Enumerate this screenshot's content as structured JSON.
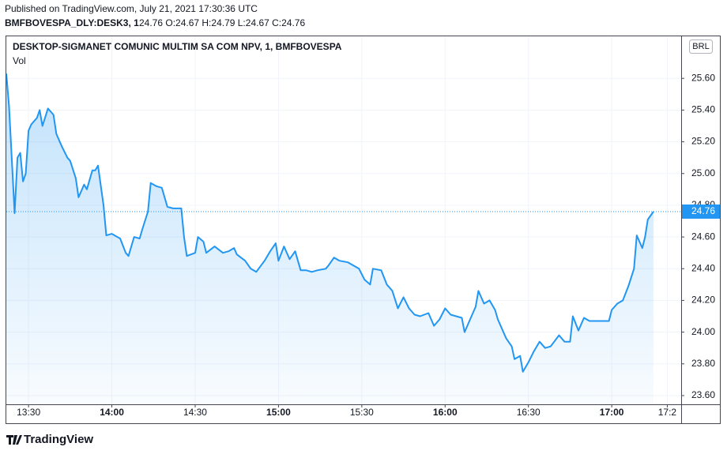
{
  "header": {
    "published": "Published on TradingView.com, July 21, 2021 17:30:36 UTC",
    "symbol": "BMFBOVESPA_DLY:DESK3, 1",
    "ohlc": "24.76 O:24.67 H:24.79 L:24.67 C:24.76"
  },
  "chart_data": {
    "type": "area",
    "title": "DESKTOP-SIGMANET COMUNIC MULTIM SA COM NPV, 1, BMFBOVESPA",
    "subtitle": "Vol",
    "currency": "BRL",
    "color": "#2196f3",
    "grid": true,
    "last_price": 24.76,
    "x": [
      802,
      803,
      805,
      806,
      807,
      808,
      809,
      810,
      811,
      813,
      814,
      815,
      817,
      819,
      820,
      822,
      824,
      825,
      827,
      828,
      830,
      831,
      833,
      834,
      835,
      837,
      838,
      840,
      842,
      843,
      845,
      846,
      848,
      850,
      851,
      853,
      854,
      856,
      858,
      860,
      862,
      865,
      866,
      867,
      870,
      871,
      873,
      874,
      877,
      880,
      882,
      884,
      885,
      888,
      890,
      892,
      895,
      897,
      899,
      900,
      902,
      904,
      906,
      908,
      910,
      912,
      914,
      917,
      918,
      920,
      922,
      925,
      929,
      931,
      933,
      934,
      937,
      939,
      941,
      943,
      945,
      947,
      949,
      951,
      954,
      956,
      958,
      960,
      962,
      964,
      966,
      967,
      969,
      971,
      972,
      974,
      976,
      978,
      979,
      982,
      984,
      985,
      987,
      988,
      990,
      992,
      994,
      996,
      998,
      1001,
      1003,
      1005,
      1006,
      1008,
      1010,
      1012,
      1014,
      1016,
      1019,
      1020,
      1022,
      1024,
      1026,
      1028,
      1029,
      1031,
      1032,
      1033,
      1035
    ],
    "values": [
      25.63,
      25.42,
      24.75,
      25.1,
      25.13,
      24.95,
      25.0,
      25.27,
      25.31,
      25.35,
      25.4,
      25.3,
      25.41,
      25.37,
      25.25,
      25.17,
      25.1,
      25.08,
      24.97,
      24.85,
      24.93,
      24.9,
      25.02,
      25.02,
      25.05,
      24.8,
      24.61,
      24.62,
      24.6,
      24.59,
      24.5,
      24.48,
      24.6,
      24.59,
      24.65,
      24.76,
      24.94,
      24.92,
      24.91,
      24.79,
      24.78,
      24.78,
      24.6,
      24.48,
      24.5,
      24.6,
      24.57,
      24.5,
      24.54,
      24.5,
      24.51,
      24.53,
      24.49,
      24.45,
      24.4,
      24.38,
      24.45,
      24.51,
      24.56,
      24.45,
      24.54,
      24.46,
      24.51,
      24.39,
      24.39,
      24.38,
      24.39,
      24.4,
      24.42,
      24.47,
      24.45,
      24.44,
      24.4,
      24.33,
      24.3,
      24.4,
      24.39,
      24.3,
      24.26,
      24.15,
      24.22,
      24.15,
      24.11,
      24.1,
      24.12,
      24.04,
      24.08,
      24.15,
      24.11,
      24.1,
      24.09,
      24.0,
      24.08,
      24.16,
      24.26,
      24.18,
      24.2,
      24.14,
      24.08,
      23.96,
      23.91,
      23.83,
      23.85,
      23.75,
      23.81,
      23.88,
      23.94,
      23.9,
      23.91,
      23.98,
      23.94,
      23.94,
      24.1,
      24.01,
      24.09,
      24.07,
      24.07,
      24.07,
      24.07,
      24.14,
      24.18,
      24.2,
      24.29,
      24.4,
      24.61,
      24.53,
      24.6,
      24.71,
      24.76
    ],
    "xlim": [
      802,
      1045
    ],
    "xticks": [
      {
        "value": 810,
        "label": "13:30"
      },
      {
        "value": 840,
        "label": "14:00"
      },
      {
        "value": 870,
        "label": "14:30"
      },
      {
        "value": 900,
        "label": "15:00"
      },
      {
        "value": 930,
        "label": "15:30"
      },
      {
        "value": 960,
        "label": "16:00"
      },
      {
        "value": 990,
        "label": "16:30"
      },
      {
        "value": 1020,
        "label": "17:00"
      },
      {
        "value": 1040,
        "label": "17:2"
      }
    ],
    "ylim": [
      23.545,
      25.86
    ],
    "yticks": [
      {
        "value": 23.6,
        "label": "23.60"
      },
      {
        "value": 23.8,
        "label": "23.80"
      },
      {
        "value": 24.0,
        "label": "24.00"
      },
      {
        "value": 24.2,
        "label": "24.20"
      },
      {
        "value": 24.4,
        "label": "24.40"
      },
      {
        "value": 24.6,
        "label": "24.60"
      },
      {
        "value": 24.8,
        "label": "24.80"
      },
      {
        "value": 25.0,
        "label": "25.00"
      },
      {
        "value": 25.2,
        "label": "25.20"
      },
      {
        "value": 25.4,
        "label": "25.40"
      },
      {
        "value": 25.6,
        "label": "25.60"
      }
    ]
  },
  "footer": {
    "brand": "TradingView"
  }
}
